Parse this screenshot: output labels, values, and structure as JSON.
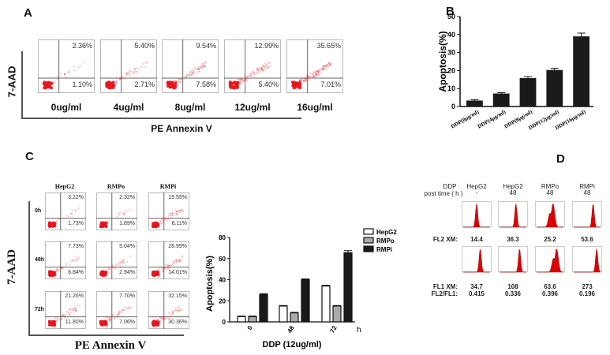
{
  "panel_a": {
    "label": "A",
    "y_axis_label": "7-AAD",
    "x_axis_label": "PE Annexin V",
    "plots": [
      {
        "concentration": "0ug/ml",
        "upper_right": "2.36%",
        "lower_right": "1.10%"
      },
      {
        "concentration": "4ug/ml",
        "upper_right": "5.40%",
        "lower_right": "2.71%"
      },
      {
        "concentration": "8ug/ml",
        "upper_right": "9.54%",
        "lower_right": "7.58%"
      },
      {
        "concentration": "12ug/ml",
        "upper_right": "12.99%",
        "lower_right": "5.40%"
      },
      {
        "concentration": "16ug/ml",
        "upper_right": "35.65%",
        "lower_right": "7.01%"
      }
    ]
  },
  "panel_b": {
    "label": "B"
  },
  "panel_c": {
    "label": "C",
    "y_axis_label": "7-AAD",
    "x_axis_label": "PE Annexin V",
    "columns": [
      "HepG2",
      "RMPo",
      "RMPi"
    ],
    "rows": [
      {
        "time": "0h",
        "cells": [
          {
            "ur": "3.22%",
            "lr": "1.73%"
          },
          {
            "ur": "2.32%",
            "lr": "1.89%"
          },
          {
            "ur": "19.55%",
            "lr": "6.11%"
          }
        ]
      },
      {
        "time": "48h",
        "cells": [
          {
            "ur": "7.73%",
            "lr": "6.84%"
          },
          {
            "ur": "5.04%",
            "lr": "2.94%"
          },
          {
            "ur": "28.99%",
            "lr": "14.01%"
          }
        ]
      },
      {
        "time": "72h",
        "cells": [
          {
            "ur": "21.26%",
            "lr": "11.80%"
          },
          {
            "ur": "7.70%",
            "lr": "7.06%"
          },
          {
            "ur": "32.15%",
            "lr": "30.36%"
          }
        ]
      }
    ]
  },
  "panel_d": {
    "label": "D",
    "header_line1": "DDP",
    "header_line2": "post time ( h )",
    "columns": [
      {
        "name": "HepG2",
        "time": "-",
        "fl2_xm": "14.4",
        "fl1_xm": "34.7",
        "ratio": "0.415"
      },
      {
        "name": "HepG2",
        "time": "48",
        "fl2_xm": "36.3",
        "fl1_xm": "108",
        "ratio": "0.336"
      },
      {
        "name": "RMPo",
        "time": "48",
        "fl2_xm": "25.2",
        "fl1_xm": "63.6",
        "ratio": "0.396"
      },
      {
        "name": "RMPi",
        "time": "48",
        "fl2_xm": "53.6",
        "fl1_xm": "273",
        "ratio": "0.196"
      }
    ],
    "row_labels": {
      "fl2": "FL2 XM:",
      "fl1": "FL1 XM:",
      "ratio": "FL2/FL1:"
    }
  },
  "colors": {
    "flow_dots": "#e8141c",
    "bar_dark": "#1a1a1a",
    "bar_grey": "#aaaaaa",
    "bar_white": "#ffffff"
  },
  "chart_data": [
    {
      "type": "bar",
      "ylabel": "Apoptosis(%)",
      "ylim": [
        0,
        50
      ],
      "yticks": [
        "0",
        "10",
        "20",
        "30",
        "40",
        "50"
      ],
      "categories": [
        "DDP(0μg/ml)",
        "DDP(4μg/ml)",
        "DDP(8μg/ml)",
        "DDP(12μg/ml)",
        "DDP(16μg/ml)"
      ],
      "values": [
        3.3,
        7.2,
        15.8,
        20.3,
        39
      ],
      "errors": [
        0.5,
        0.5,
        0.8,
        0.9,
        1.8
      ]
    },
    {
      "type": "bar",
      "ylabel": "Apoptosis(%)",
      "xlabel": "DDP (12ug/ml)",
      "x_unit": "h",
      "ylim": [
        0,
        80
      ],
      "yticks": [
        "0",
        "20",
        "40",
        "60",
        "80"
      ],
      "categories": [
        "0",
        "48",
        "72"
      ],
      "series": [
        {
          "name": "HepG2",
          "values": [
            5,
            15,
            34
          ],
          "errors": [
            0.5,
            0.5,
            0.7
          ]
        },
        {
          "name": "RMPo",
          "values": [
            5,
            8.5,
            15
          ],
          "errors": [
            0.5,
            0.5,
            0.5
          ]
        },
        {
          "name": "RMPi",
          "values": [
            26,
            40,
            65.5
          ],
          "errors": [
            0.7,
            0.7,
            2
          ]
        }
      ],
      "legend": "right"
    }
  ]
}
